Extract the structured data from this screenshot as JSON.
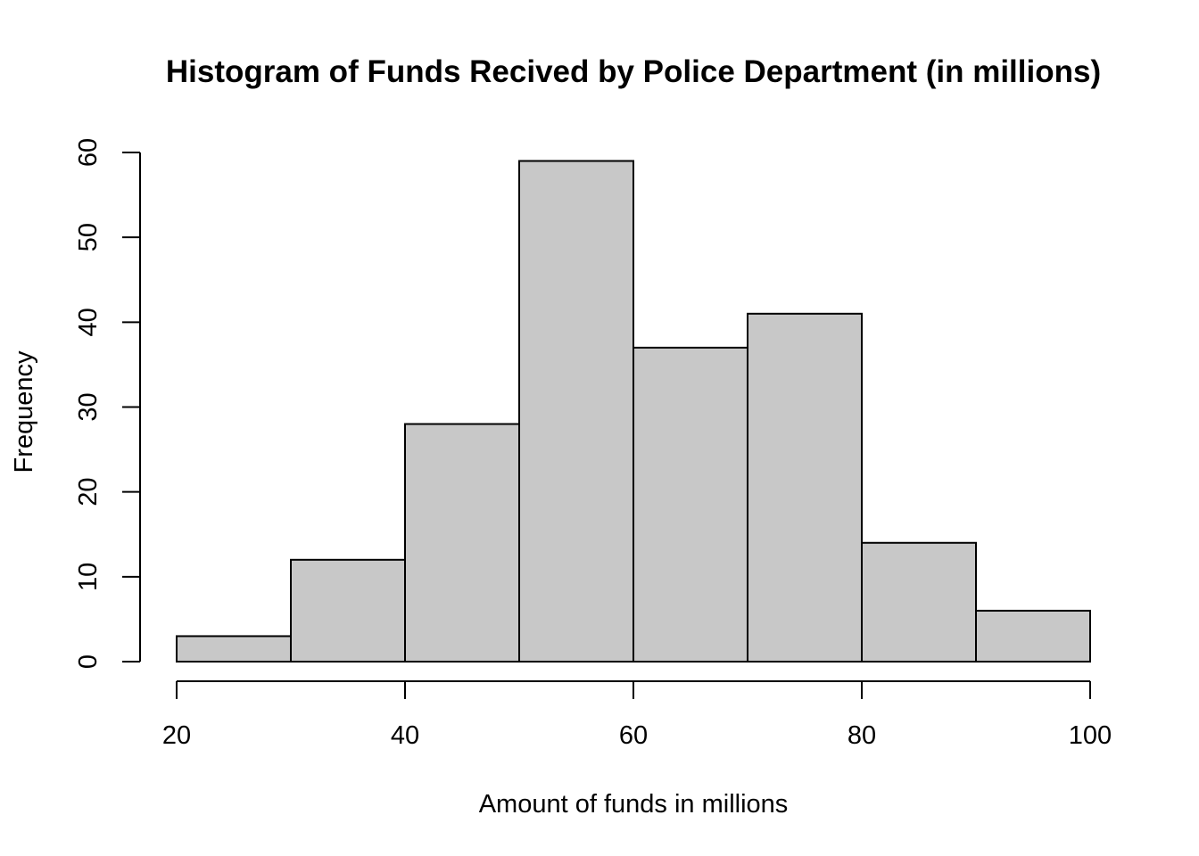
{
  "chart_data": {
    "type": "bar",
    "subtype": "histogram",
    "title": "Histogram of Funds Recived by Police Department (in millions)",
    "xlabel": "Amount of funds in millions",
    "ylabel": "Frequency",
    "bins": [
      {
        "start": 20,
        "end": 30,
        "count": 3
      },
      {
        "start": 30,
        "end": 40,
        "count": 12
      },
      {
        "start": 40,
        "end": 50,
        "count": 28
      },
      {
        "start": 50,
        "end": 60,
        "count": 59
      },
      {
        "start": 60,
        "end": 70,
        "count": 37
      },
      {
        "start": 70,
        "end": 80,
        "count": 41
      },
      {
        "start": 80,
        "end": 90,
        "count": 14
      },
      {
        "start": 90,
        "end": 100,
        "count": 6
      }
    ],
    "xlim": [
      20,
      100
    ],
    "ylim": [
      0,
      60
    ],
    "x_ticks": [
      "20",
      "40",
      "60",
      "80",
      "100"
    ],
    "y_ticks": [
      "0",
      "10",
      "20",
      "30",
      "40",
      "50",
      "60"
    ],
    "grid": false,
    "legend": "none",
    "colors": {
      "bar_fill": "#c8c8c8",
      "bar_stroke": "#000000"
    }
  }
}
